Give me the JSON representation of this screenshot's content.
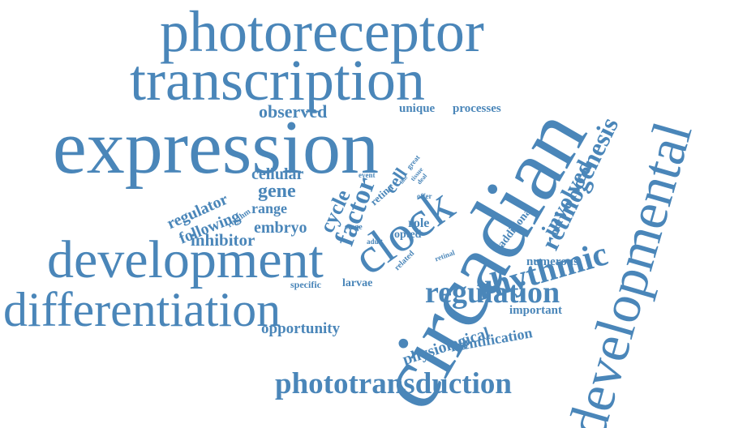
{
  "colors": {
    "word": "#4a86b9",
    "background": "#ffffff"
  },
  "words": {
    "photoreceptor": "photoreceptor",
    "transcription": "transcription",
    "expression": "expression",
    "circadian": "circadian",
    "developmental": "developmental",
    "development": "development",
    "differentiation": "differentiation",
    "clock": "clock",
    "retinogenesis": "retinogenesis",
    "rhythmic": "rhythmic",
    "regulation": "regulation",
    "phototransduction": "phototransduction",
    "involved": "involved",
    "factor": "factor",
    "cycle": "cycle",
    "observed": "observed",
    "unique": "unique",
    "processes": "processes",
    "regulator": "regulator",
    "following": "following",
    "gene": "gene",
    "cellular": "cellular",
    "range": "range",
    "embryo": "embryo",
    "inhibitor": "inhibitor",
    "cell": "cell",
    "retina": "retina",
    "event": "event",
    "great": "great",
    "tissue": "tissue",
    "line": "line",
    "deal": "deal",
    "offer": "offer",
    "rhythm": "rhythm",
    "role": "role",
    "stage": "stage",
    "adult": "adult",
    "opted": "opted",
    "related": "related",
    "retinal": "retinal",
    "additional": "additional",
    "numerous": "numerous",
    "specific": "specific",
    "larvae": "larvae",
    "important": "important",
    "physiological": "physiological",
    "identification": "identification",
    "opportunity": "opportunity"
  }
}
